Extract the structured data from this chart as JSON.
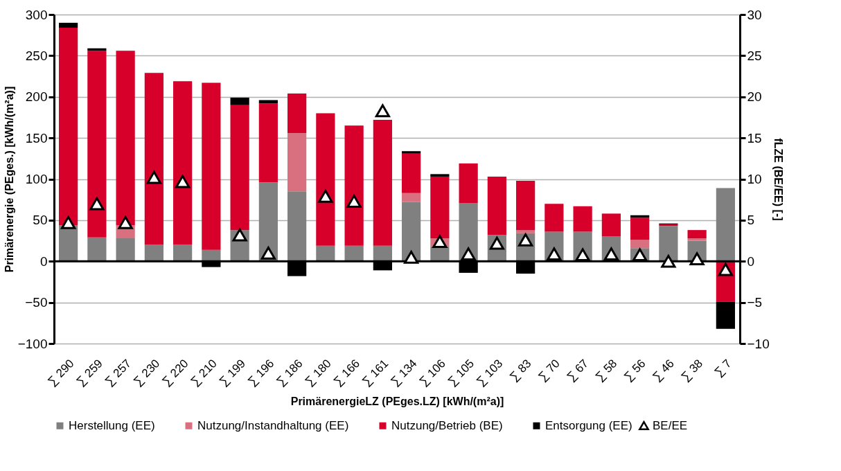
{
  "chart_data": {
    "type": "bar",
    "stacked": true,
    "categories": [
      "∑ 290",
      "∑ 259",
      "∑ 257",
      "∑ 230",
      "∑ 220",
      "∑ 210",
      "∑ 199",
      "∑ 196",
      "∑ 186",
      "∑ 180",
      "∑ 166",
      "∑ 161",
      "∑ 134",
      "∑ 106",
      "∑ 105",
      "∑ 103",
      "∑ 83",
      "∑ 70",
      "∑ 67",
      "∑ 58",
      "∑ 56",
      "∑ 46",
      "∑ 38",
      "∑ 7"
    ],
    "xlabel": "PrimärenergieLZ (PEges.LZ) [kWh/(m²a)]",
    "ylabel": "Primärenergie (PEges.) [kWh/(m²a)]",
    "y2label": "fLZE (BE/EE) [-]",
    "ylim": [
      -100,
      300
    ],
    "yticks": [
      -100,
      -50,
      0,
      50,
      100,
      150,
      200,
      250,
      300
    ],
    "y2lim": [
      -10,
      30
    ],
    "y2ticks": [
      -10,
      -5,
      0,
      5,
      10,
      15,
      20,
      25,
      30
    ],
    "grid": "y",
    "legend": "bottom",
    "ref_lines": [
      {
        "axis": "y",
        "value": 0,
        "color": "#000000"
      }
    ],
    "series": [
      {
        "name": "Herstellung (EE)",
        "color": "#808080",
        "values": [
          44,
          29,
          28,
          20,
          20,
          14,
          38,
          96,
          85,
          19,
          19,
          19,
          72,
          18,
          71,
          32,
          34,
          36,
          36,
          30,
          16,
          43,
          25,
          89
        ]
      },
      {
        "name": "Nutzung/Instandhaltung (EE)",
        "color": "#d9707f",
        "values": [
          0,
          0,
          16,
          0,
          0,
          0,
          0,
          0,
          71,
          0,
          0,
          0,
          11,
          10,
          0,
          0,
          4,
          0,
          0,
          0,
          10,
          0,
          3,
          0
        ]
      },
      {
        "name": "Nutzung/Betrieb (BE)",
        "color": "#d7002a",
        "values": [
          240,
          227,
          212,
          209,
          199,
          203,
          152,
          96,
          48,
          161,
          146,
          153,
          48,
          75,
          48,
          71,
          60,
          34,
          31,
          28,
          27,
          2,
          10,
          -49
        ]
      },
      {
        "name": "Entsorgung (EE)",
        "color": "#000000",
        "values": [
          6,
          3,
          0,
          0,
          0,
          -7,
          9,
          4,
          -18,
          0,
          0,
          -11,
          3,
          3,
          -14,
          0,
          -15,
          0,
          0,
          0,
          3,
          1,
          0,
          -33
        ]
      },
      {
        "name": "BE/EE",
        "type": "scatter",
        "axis": "y2",
        "marker": "triangle",
        "color": "#ffffff",
        "values": [
          4.7,
          7.0,
          4.7,
          10.2,
          9.7,
          null,
          3.2,
          1.0,
          null,
          7.9,
          7.3,
          18.3,
          0.5,
          2.4,
          0.9,
          2.2,
          2.6,
          0.9,
          0.8,
          0.9,
          0.8,
          0.0,
          0.3,
          -1.0
        ]
      }
    ]
  }
}
